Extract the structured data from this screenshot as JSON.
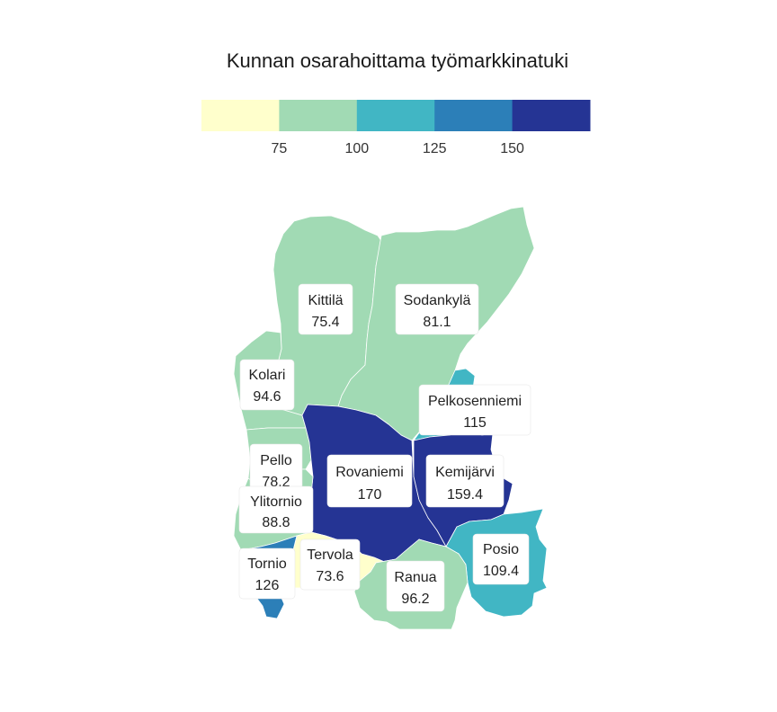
{
  "title": "Kunnan osarahoittama työmarkkinatuki",
  "legend": {
    "colors": [
      "#ffffcc",
      "#a1dab4",
      "#41b6c4",
      "#2c7fb8",
      "#253494"
    ],
    "breaks": [
      75,
      100,
      125,
      150
    ],
    "tick_labels": [
      "75",
      "100",
      "125",
      "150"
    ]
  },
  "municipalities": [
    {
      "name": "Kittilä",
      "value": 75.4,
      "value_label": "75.4",
      "color": "#a1dab4"
    },
    {
      "name": "Sodankylä",
      "value": 81.1,
      "value_label": "81.1",
      "color": "#a1dab4"
    },
    {
      "name": "Kolari",
      "value": 94.6,
      "value_label": "94.6",
      "color": "#a1dab4"
    },
    {
      "name": "Pelkosenniemi",
      "value": 115,
      "value_label": "115",
      "color": "#41b6c4"
    },
    {
      "name": "Pello",
      "value": 78.2,
      "value_label": "78.2",
      "color": "#a1dab4"
    },
    {
      "name": "Rovaniemi",
      "value": 170,
      "value_label": "170",
      "color": "#253494"
    },
    {
      "name": "Kemijärvi",
      "value": 159.4,
      "value_label": "159.4",
      "color": "#253494"
    },
    {
      "name": "Ylitornio",
      "value": 88.8,
      "value_label": "88.8",
      "color": "#a1dab4"
    },
    {
      "name": "Tervola",
      "value": 73.6,
      "value_label": "73.6",
      "color": "#ffffcc"
    },
    {
      "name": "Posio",
      "value": 109.4,
      "value_label": "109.4",
      "color": "#41b6c4"
    },
    {
      "name": "Tornio",
      "value": 126,
      "value_label": "126",
      "color": "#2c7fb8"
    },
    {
      "name": "Ranua",
      "value": 96.2,
      "value_label": "96.2",
      "color": "#a1dab4"
    }
  ]
}
